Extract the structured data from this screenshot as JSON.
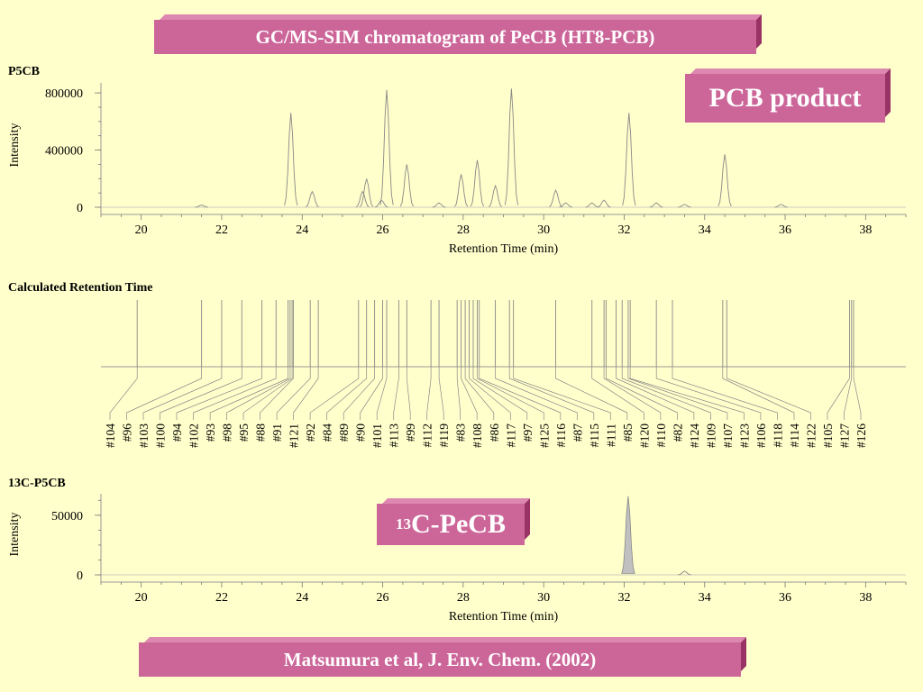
{
  "title": "GC/MS-SIM chromatogram of PeCB (HT8-PCB)",
  "footer": "Matsumura et al, J. Env. Chem. (2002)",
  "pcb_label": "PCB product",
  "c13_label": {
    "sup": "13",
    "text": "C-PeCB"
  },
  "colors": {
    "background": "#ffffcc",
    "banner": "#cc6699",
    "trace": "#888888",
    "fill": "#c0c0c0"
  },
  "chart_data": [
    {
      "name": "P5CB",
      "type": "line",
      "xlabel": "Retention Time (min)",
      "ylabel": "Intensity",
      "xlim": [
        19,
        39
      ],
      "ylim": [
        0,
        870000
      ],
      "xticks": [
        20,
        22,
        24,
        26,
        28,
        30,
        32,
        34,
        36,
        38
      ],
      "yticks": [
        0,
        400000,
        800000
      ],
      "peaks": [
        {
          "x": 21.5,
          "y": 15000
        },
        {
          "x": 23.72,
          "y": 660000
        },
        {
          "x": 24.25,
          "y": 110000
        },
        {
          "x": 25.5,
          "y": 110000
        },
        {
          "x": 25.6,
          "y": 200000
        },
        {
          "x": 25.97,
          "y": 50000
        },
        {
          "x": 26.1,
          "y": 820000
        },
        {
          "x": 26.6,
          "y": 300000
        },
        {
          "x": 27.4,
          "y": 30000
        },
        {
          "x": 27.95,
          "y": 230000
        },
        {
          "x": 28.35,
          "y": 330000
        },
        {
          "x": 28.8,
          "y": 150000
        },
        {
          "x": 29.2,
          "y": 830000
        },
        {
          "x": 30.3,
          "y": 120000
        },
        {
          "x": 30.55,
          "y": 30000
        },
        {
          "x": 31.2,
          "y": 30000
        },
        {
          "x": 31.5,
          "y": 50000
        },
        {
          "x": 32.12,
          "y": 660000
        },
        {
          "x": 32.8,
          "y": 30000
        },
        {
          "x": 33.5,
          "y": 20000
        },
        {
          "x": 34.5,
          "y": 370000
        },
        {
          "x": 35.9,
          "y": 20000
        }
      ]
    },
    {
      "name": "13C-P5CB",
      "type": "line",
      "xlabel": "Retention Time (min)",
      "ylabel": "Intensity",
      "xlim": [
        19,
        39
      ],
      "ylim": [
        0,
        68000
      ],
      "xticks": [
        20,
        22,
        24,
        26,
        28,
        30,
        32,
        34,
        36,
        38
      ],
      "yticks": [
        0,
        50000
      ],
      "peaks": [
        {
          "x": 32.1,
          "y": 66000
        },
        {
          "x": 33.5,
          "y": 3000
        }
      ]
    }
  ],
  "retention": {
    "title": "Calculated Retention Time",
    "xlim": [
      19,
      39
    ],
    "congeners": [
      {
        "label": "#104",
        "rt": 19.9
      },
      {
        "label": "#96",
        "rt": 21.5
      },
      {
        "label": "#103",
        "rt": 22.0
      },
      {
        "label": "#100",
        "rt": 22.5
      },
      {
        "label": "#94",
        "rt": 23.0
      },
      {
        "label": "#102",
        "rt": 23.35
      },
      {
        "label": "#93",
        "rt": 23.65
      },
      {
        "label": "#98",
        "rt": 23.7
      },
      {
        "label": "#95",
        "rt": 23.75
      },
      {
        "label": "#88",
        "rt": 23.78
      },
      {
        "label": "#91",
        "rt": 24.2
      },
      {
        "label": "#121",
        "rt": 24.4
      },
      {
        "label": "#92",
        "rt": 25.4
      },
      {
        "label": "#84",
        "rt": 25.6
      },
      {
        "label": "#89",
        "rt": 25.8
      },
      {
        "label": "#90",
        "rt": 26.0
      },
      {
        "label": "#101",
        "rt": 26.1
      },
      {
        "label": "#113",
        "rt": 26.4
      },
      {
        "label": "#99",
        "rt": 26.6
      },
      {
        "label": "#112",
        "rt": 27.2
      },
      {
        "label": "#119",
        "rt": 27.4
      },
      {
        "label": "#83",
        "rt": 27.85
      },
      {
        "label": "#108",
        "rt": 27.95
      },
      {
        "label": "#86",
        "rt": 28.05
      },
      {
        "label": "#117",
        "rt": 28.15
      },
      {
        "label": "#97",
        "rt": 28.25
      },
      {
        "label": "#125",
        "rt": 28.35
      },
      {
        "label": "#116",
        "rt": 28.4
      },
      {
        "label": "#87",
        "rt": 28.8
      },
      {
        "label": "#115",
        "rt": 29.15
      },
      {
        "label": "#111",
        "rt": 29.25
      },
      {
        "label": "#85",
        "rt": 30.3
      },
      {
        "label": "#120",
        "rt": 31.2
      },
      {
        "label": "#110",
        "rt": 31.5
      },
      {
        "label": "#82",
        "rt": 31.55
      },
      {
        "label": "#124",
        "rt": 31.8
      },
      {
        "label": "#109",
        "rt": 31.95
      },
      {
        "label": "#107",
        "rt": 32.1
      },
      {
        "label": "#123",
        "rt": 32.15
      },
      {
        "label": "#106",
        "rt": 32.8
      },
      {
        "label": "#118",
        "rt": 33.2
      },
      {
        "label": "#114",
        "rt": 34.45
      },
      {
        "label": "#122",
        "rt": 34.55
      },
      {
        "label": "#105",
        "rt": 37.6
      },
      {
        "label": "#127",
        "rt": 37.65
      },
      {
        "label": "#126",
        "rt": 37.7
      }
    ]
  }
}
